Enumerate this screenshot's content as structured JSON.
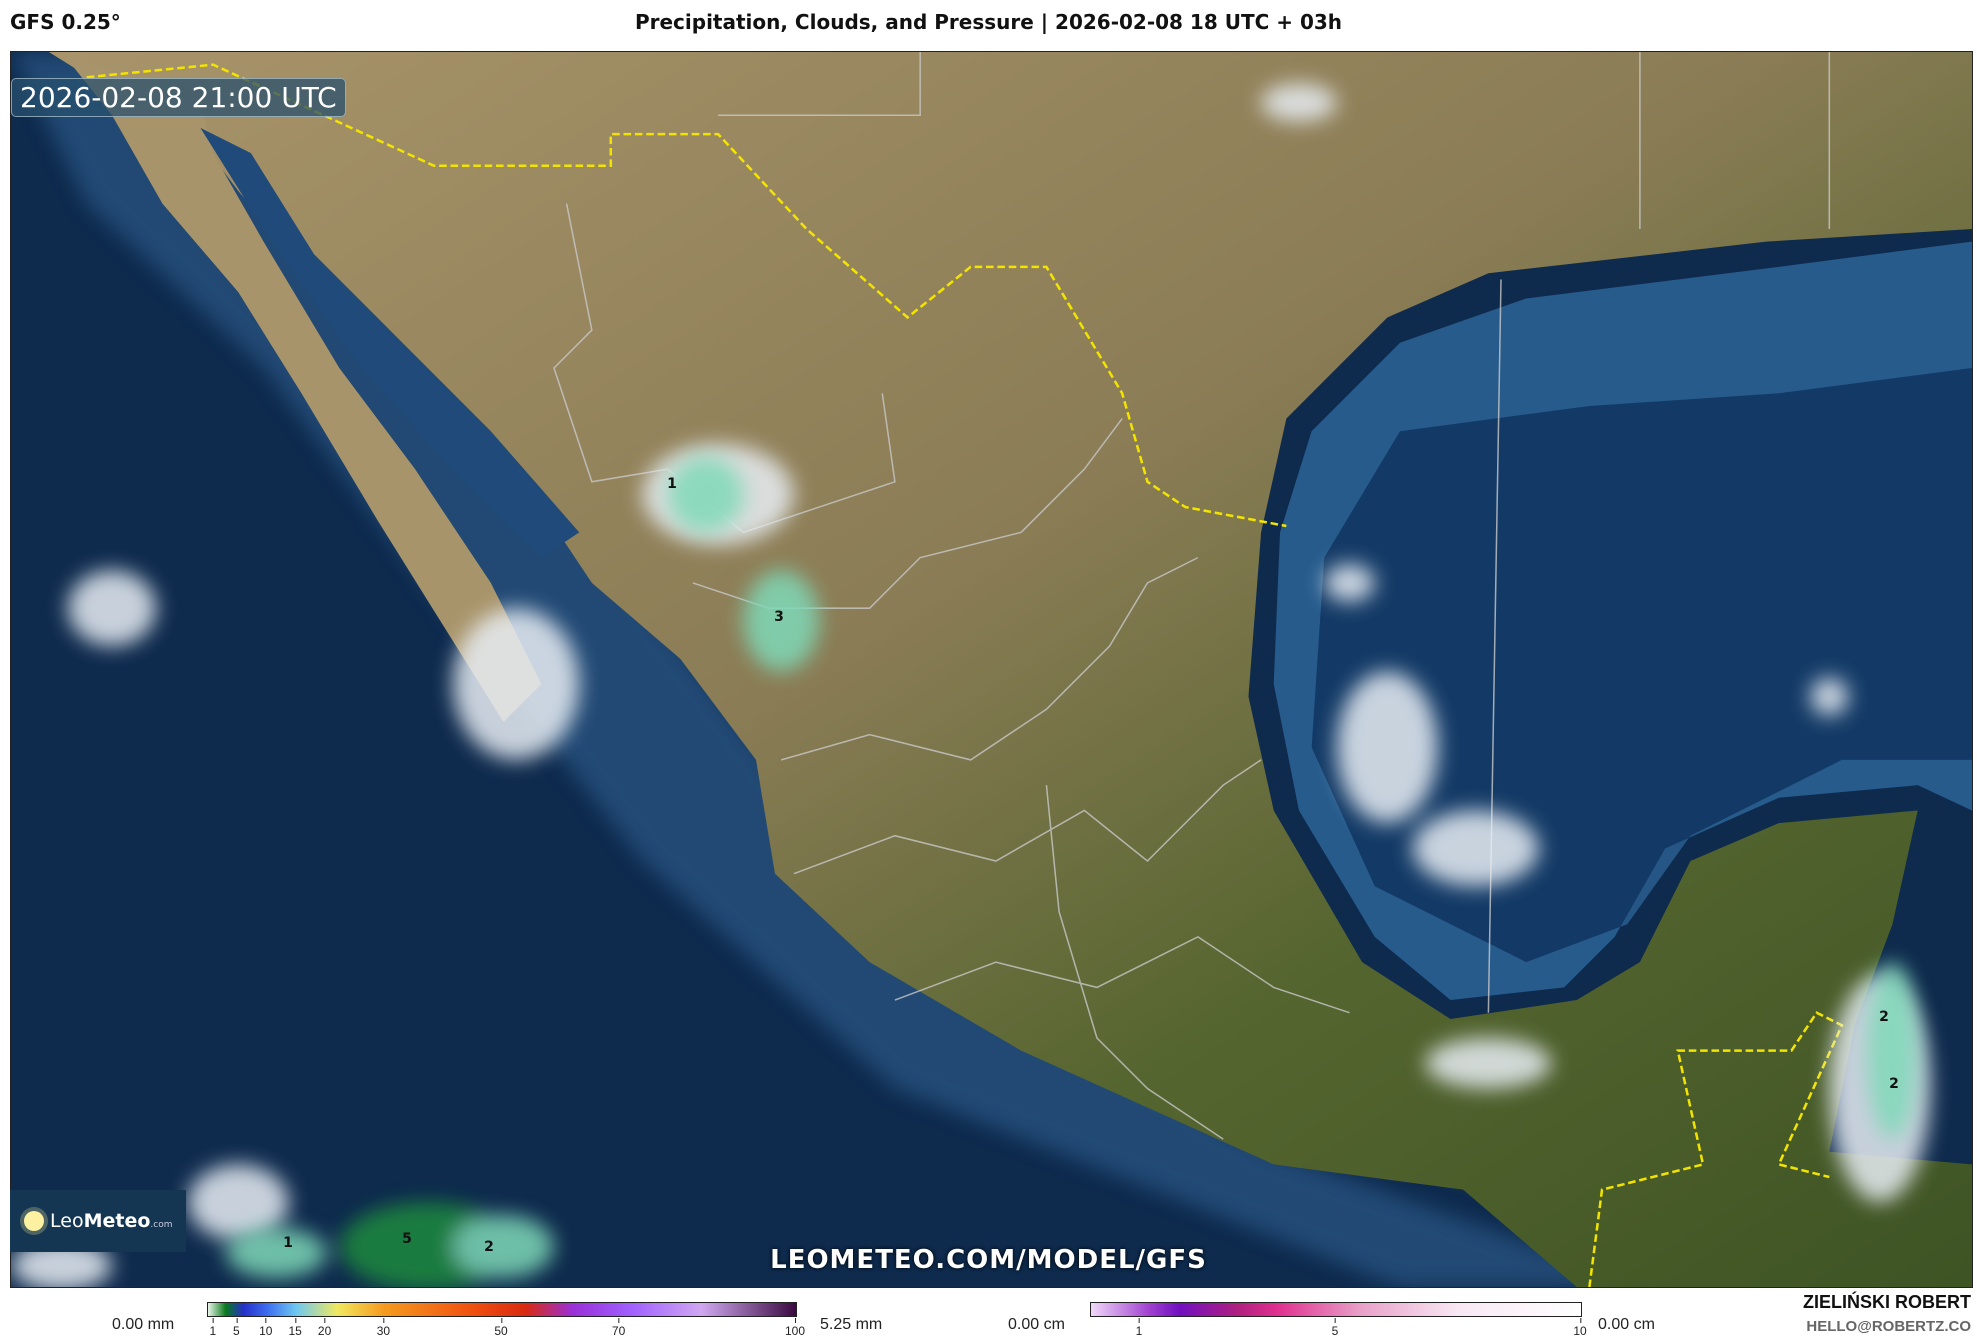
{
  "header": {
    "model": "GFS 0.25°",
    "title": "Precipitation, Clouds, and Pressure | 2026-02-08 18 UTC + 03h"
  },
  "map": {
    "timestamp": "2026-02-08 21:00 UTC",
    "watermark": "LEOMETEO.COM/MODEL/GFS",
    "logo": {
      "leo": "Leo",
      "meteo": "Meteo",
      "com": ".com"
    },
    "precip_labels": [
      "1",
      "3",
      "1",
      "5",
      "2",
      "2",
      "2"
    ],
    "colors": {
      "ocean": "#0e2a4d",
      "shelf": "#2d5f8f",
      "land_arid": "#9c8a63",
      "land_green": "#4d5e2a",
      "border_country": "#f2e400",
      "border_state": "#c8c8c8",
      "precip": "#7fd9b8"
    }
  },
  "legend": {
    "precip": {
      "min": "0.00 mm",
      "max": "5.25 mm",
      "ticks": [
        "1",
        "5",
        "10",
        "15",
        "20",
        "30",
        "50",
        "70",
        "100"
      ]
    },
    "snow": {
      "min": "0.00 cm",
      "max": "0.00 cm",
      "ticks": [
        "1",
        "5",
        "10"
      ]
    }
  },
  "author": {
    "name": "ZIELIŃSKI ROBERT",
    "email": "HELLO@ROBERTZ.CO"
  }
}
